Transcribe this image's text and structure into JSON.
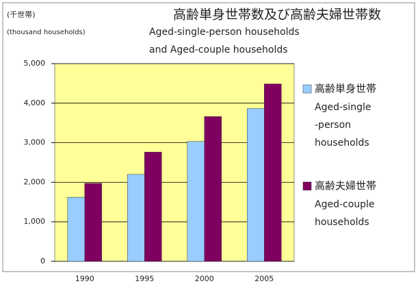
{
  "chart_data": {
    "type": "bar",
    "title": "高齢単身世帯数及び高齢夫婦世帯数",
    "subtitle_lines": [
      "Aged-single-person households",
      "and Aged-couple households"
    ],
    "unit_labels": [
      "(千世帯)",
      "(thousand households)"
    ],
    "categories": [
      "1990",
      "1995",
      "2000",
      "2005"
    ],
    "series": [
      {
        "name": "高齢単身世帯",
        "name_en_lines": [
          "Aged-single",
          "-person",
          "households"
        ],
        "color": "#99ccff",
        "values": [
          1623,
          2199,
          3032,
          3865
        ]
      },
      {
        "name": "高齢夫婦世帯",
        "name_en_lines": [
          "Aged-couple",
          "households"
        ],
        "color": "#800060",
        "values": [
          1974,
          2762,
          3661,
          4487
        ]
      }
    ],
    "ylim": [
      0,
      5000
    ],
    "yticks": [
      0,
      {
        "value": 1000,
        "label": "1,000"
      },
      {
        "value": 2000,
        "label": "2,000"
      },
      {
        "value": 3000,
        "label": "3,000"
      },
      {
        "value": 4000,
        "label": "4,000"
      },
      {
        "value": 5000,
        "label": "5,000"
      }
    ],
    "grid": true,
    "plot_background": "#ffff99",
    "legend": "right"
  }
}
